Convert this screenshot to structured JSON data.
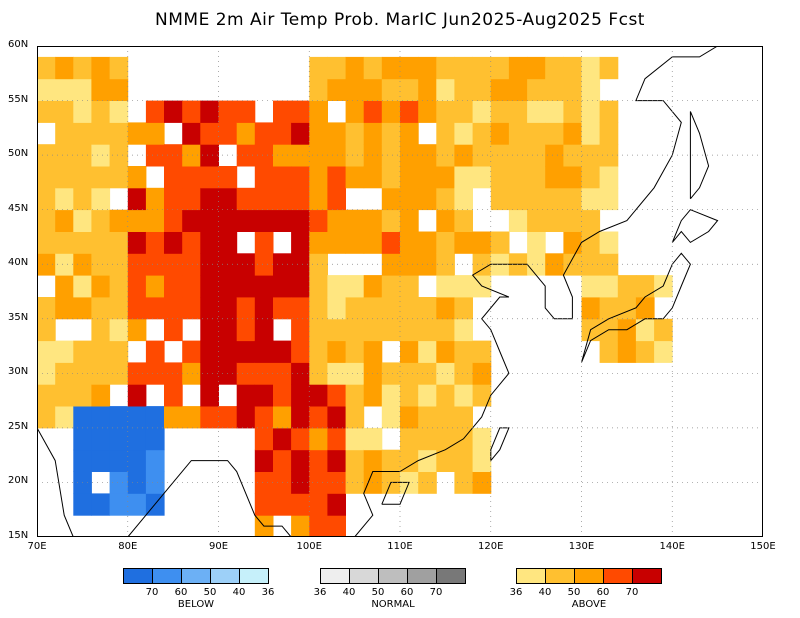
{
  "title": "NMME 2m Air Temp Prob. MarIC  Jun2025-Aug2025 Fcst",
  "chart_data": {
    "type": "heatmap",
    "description_units": "tercile probability (%)",
    "x_axis": {
      "range": [
        70,
        150
      ],
      "ticks": [
        "70E",
        "80E",
        "90E",
        "100E",
        "110E",
        "120E",
        "130E",
        "140E",
        "150E"
      ]
    },
    "y_axis": {
      "range": [
        15,
        60
      ],
      "ticks": [
        "15N",
        "20N",
        "25N",
        "30N",
        "35N",
        "40N",
        "45N",
        "50N",
        "55N",
        "60N"
      ]
    },
    "grid": true,
    "categories_legend": [
      {
        "name": "BELOW",
        "colors": [
          "#1f6fe0",
          "#3e8ff0",
          "#6cb0f5",
          "#9dd0f8",
          "#c6f0fa"
        ],
        "tick_labels": [
          "70",
          "60",
          "50",
          "40",
          "36"
        ]
      },
      {
        "name": "NORMAL",
        "colors": [
          "#eeeeee",
          "#d8d8d8",
          "#bebebe",
          "#a0a0a0",
          "#787878"
        ],
        "tick_labels": [
          "36",
          "40",
          "50",
          "60",
          "70"
        ]
      },
      {
        "name": "ABOVE",
        "colors": [
          "#ffe680",
          "#ffc030",
          "#ffa000",
          "#ff4a00",
          "#c80000"
        ],
        "tick_labels": [
          "36",
          "40",
          "50",
          "60",
          "70"
        ]
      }
    ],
    "regions": [
      {
        "lon": [
          70,
          80
        ],
        "lat": [
          25,
          60
        ],
        "category": "ABOVE",
        "level": 2
      },
      {
        "lon": [
          80,
          100
        ],
        "lat": [
          25,
          55
        ],
        "category": "ABOVE",
        "level": 4
      },
      {
        "lon": [
          88,
          103
        ],
        "lat": [
          28,
          46
        ],
        "category": "ABOVE",
        "level": 5
      },
      {
        "lon": [
          100,
          115
        ],
        "lat": [
          40,
          60
        ],
        "category": "ABOVE",
        "level": 3
      },
      {
        "lon": [
          115,
          135
        ],
        "lat": [
          40,
          60
        ],
        "category": "ABOVE",
        "level": 2
      },
      {
        "lon": [
          100,
          120
        ],
        "lat": [
          20,
          40
        ],
        "category": "ABOVE",
        "level": 2
      },
      {
        "lon": [
          95,
          105
        ],
        "lat": [
          15,
          30
        ],
        "category": "ABOVE",
        "level": 4
      },
      {
        "lon": [
          75,
          85
        ],
        "lat": [
          17,
          27
        ],
        "category": "BELOW",
        "level": 1
      },
      {
        "lon": [
          130,
          140
        ],
        "lat": [
          30,
          40
        ],
        "category": "ABOVE",
        "level": 2
      }
    ]
  }
}
